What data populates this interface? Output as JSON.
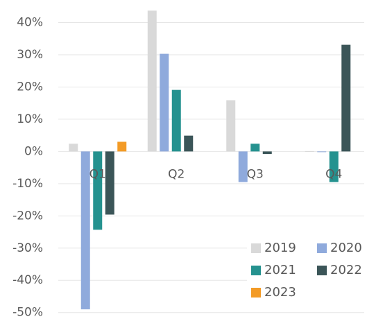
{
  "chart_data": {
    "type": "bar",
    "categories": [
      "Q1",
      "Q2",
      "Q3",
      "Q4"
    ],
    "series": [
      {
        "name": "2019",
        "color": "#d9d9d9",
        "values": [
          2.4,
          43.7,
          15.9,
          0.1
        ]
      },
      {
        "name": "2020",
        "color": "#8faadc",
        "values": [
          -49,
          30.3,
          -9.5,
          -0.2
        ]
      },
      {
        "name": "2021",
        "color": "#25928f",
        "values": [
          -24.3,
          19.1,
          2.4,
          -9.5
        ]
      },
      {
        "name": "2022",
        "color": "#3b5558",
        "values": [
          -19.6,
          4.9,
          -0.8,
          33.1
        ]
      },
      {
        "name": "2023",
        "color": "#f39b26",
        "values": [
          3.0,
          null,
          null,
          null
        ]
      }
    ],
    "ylim": [
      -52,
      47
    ],
    "yticks": [
      {
        "value": 40,
        "label": "40%"
      },
      {
        "value": 30,
        "label": "30%"
      },
      {
        "value": 20,
        "label": "20%"
      },
      {
        "value": 10,
        "label": "10%"
      },
      {
        "value": 0,
        "label": "0%"
      },
      {
        "value": -10,
        "label": "-10%"
      },
      {
        "value": -20,
        "label": "-20%"
      },
      {
        "value": -30,
        "label": "-30%"
      },
      {
        "value": -40,
        "label": "-40%"
      },
      {
        "value": -50,
        "label": "-50%"
      }
    ],
    "grid": true,
    "legend": "bottom-right"
  }
}
